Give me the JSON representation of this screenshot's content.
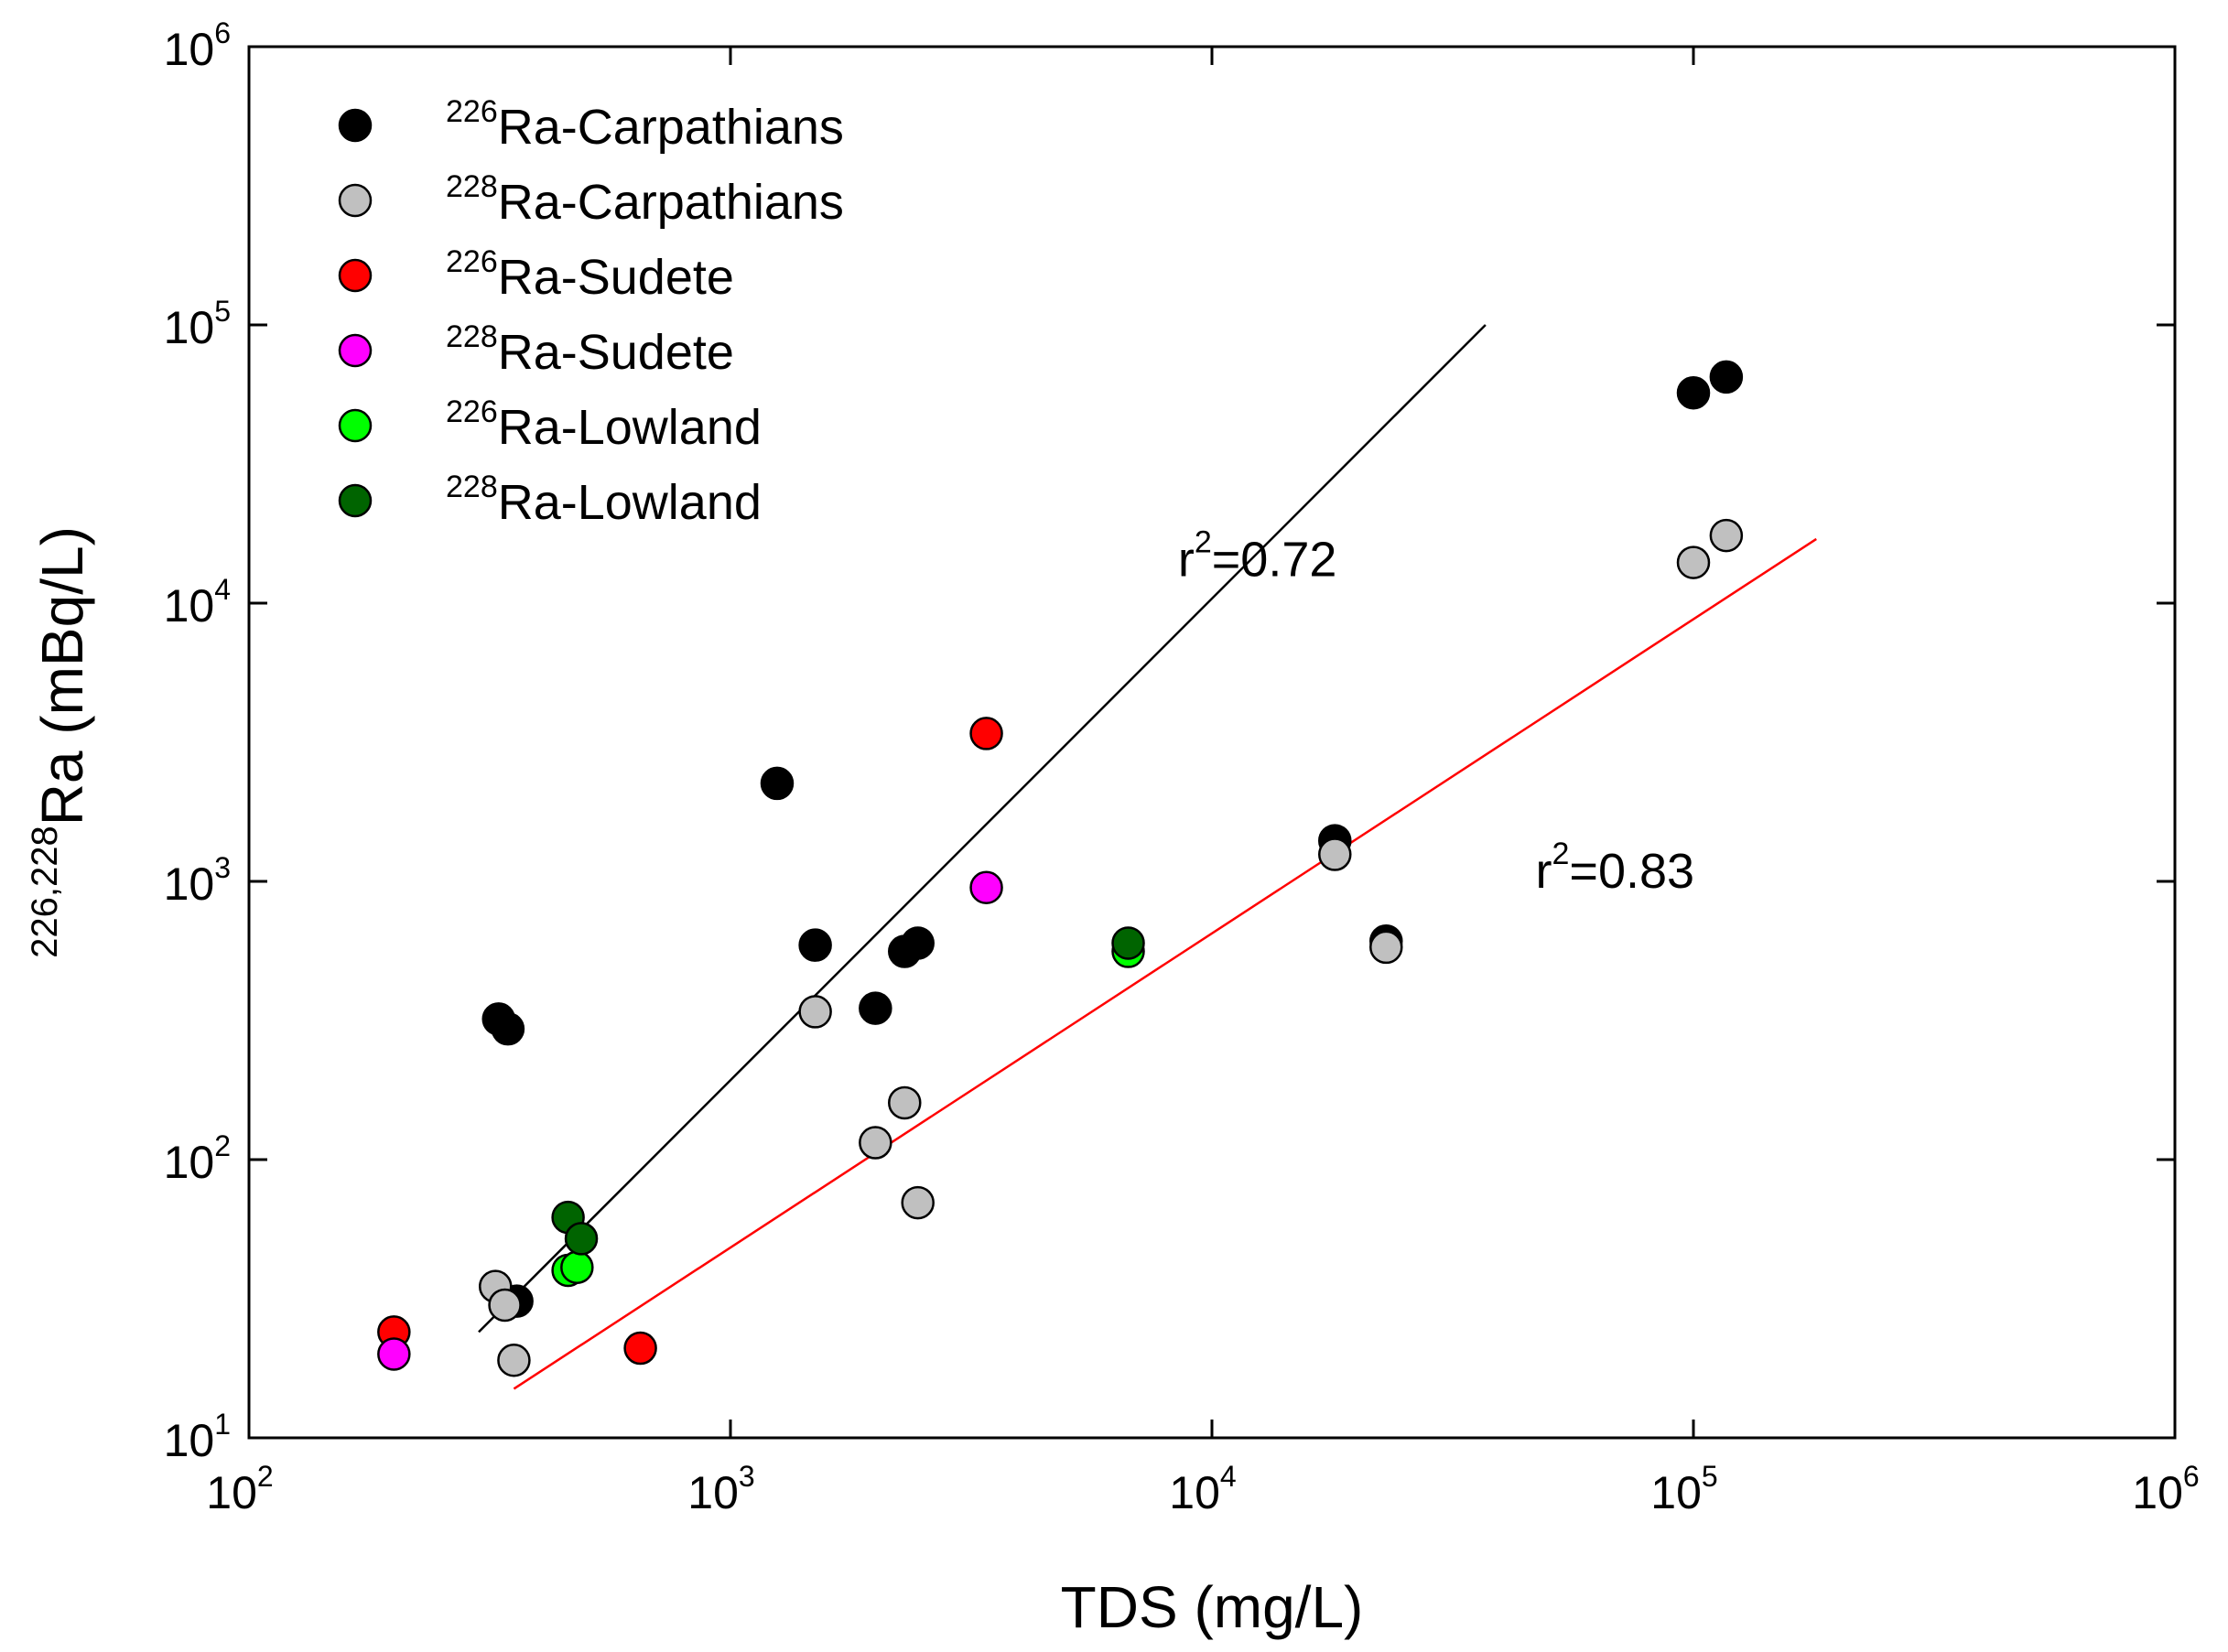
{
  "chart_data": {
    "type": "scatter",
    "xscale": "log",
    "yscale": "log",
    "xlim": [
      100,
      1000000
    ],
    "ylim": [
      10,
      1000000
    ],
    "xlabel": "TDS (mg/L)",
    "ylabel": {
      "super": "226,228",
      "main": "Ra (mBq/L)"
    },
    "xticks": [
      {
        "base": "10",
        "exp": "2",
        "value": 100
      },
      {
        "base": "10",
        "exp": "3",
        "value": 1000
      },
      {
        "base": "10",
        "exp": "4",
        "value": 10000
      },
      {
        "base": "10",
        "exp": "5",
        "value": 100000
      },
      {
        "base": "10",
        "exp": "6",
        "value": 1000000
      }
    ],
    "yticks": [
      {
        "base": "10",
        "exp": "1",
        "value": 10
      },
      {
        "base": "10",
        "exp": "2",
        "value": 100
      },
      {
        "base": "10",
        "exp": "3",
        "value": 1000
      },
      {
        "base": "10",
        "exp": "4",
        "value": 10000
      },
      {
        "base": "10",
        "exp": "5",
        "value": 100000
      },
      {
        "base": "10",
        "exp": "6",
        "value": 1000000
      }
    ],
    "legend_position": "top-left",
    "series": [
      {
        "id": "ra226-carpathians",
        "sup": "226",
        "label": "Ra-Carpathians",
        "color": "#000000",
        "points": [
          [
            330,
            320
          ],
          [
            345,
            295
          ],
          [
            360,
            31
          ],
          [
            1250,
            2250
          ],
          [
            1500,
            590
          ],
          [
            2000,
            350
          ],
          [
            2300,
            560
          ],
          [
            2450,
            600
          ],
          [
            18000,
            1400
          ],
          [
            23000,
            610
          ],
          [
            100000,
            57000
          ],
          [
            117000,
            65000
          ]
        ]
      },
      {
        "id": "ra228-carpathians",
        "sup": "228",
        "label": "Ra-Carpathians",
        "color": "#c0c0c0",
        "points": [
          [
            325,
            35
          ],
          [
            340,
            30
          ],
          [
            355,
            19
          ],
          [
            1500,
            340
          ],
          [
            2000,
            115
          ],
          [
            2300,
            160
          ],
          [
            2450,
            70
          ],
          [
            18000,
            1250
          ],
          [
            23000,
            580
          ],
          [
            100000,
            14000
          ],
          [
            117000,
            17500
          ]
        ]
      },
      {
        "id": "ra226-sudete",
        "sup": "226",
        "label": "Ra-Sudete",
        "color": "#ff0000",
        "points": [
          [
            200,
            24
          ],
          [
            650,
            21
          ],
          [
            3400,
            3400
          ]
        ]
      },
      {
        "id": "ra228-sudete",
        "sup": "228",
        "label": "Ra-Sudete",
        "color": "#ff00ff",
        "points": [
          [
            200,
            20
          ],
          [
            3400,
            950
          ]
        ]
      },
      {
        "id": "ra226-lowland",
        "sup": "226",
        "label": "Ra-Lowland",
        "color": "#00ff00",
        "points": [
          [
            460,
            40
          ],
          [
            480,
            41
          ],
          [
            6700,
            560
          ]
        ]
      },
      {
        "id": "ra228-lowland",
        "sup": "228",
        "label": "Ra-Lowland",
        "color": "#006400",
        "points": [
          [
            460,
            62
          ],
          [
            490,
            52
          ],
          [
            6700,
            600
          ]
        ]
      }
    ],
    "fit_lines": [
      {
        "id": "fit-226",
        "color": "#000000",
        "x": [
          300,
          37000
        ],
        "y": [
          24,
          100000
        ],
        "r2_prefix": "r",
        "r2_exp": "2",
        "r2_value": "=0.72",
        "label_at": [
          8500,
          12500
        ]
      },
      {
        "id": "fit-228",
        "color": "#ff0000",
        "x": [
          355,
          180000
        ],
        "y": [
          15,
          17000
        ],
        "r2_prefix": "r",
        "r2_exp": "2",
        "r2_value": "=0.83",
        "label_at": [
          47000,
          950
        ]
      }
    ]
  }
}
